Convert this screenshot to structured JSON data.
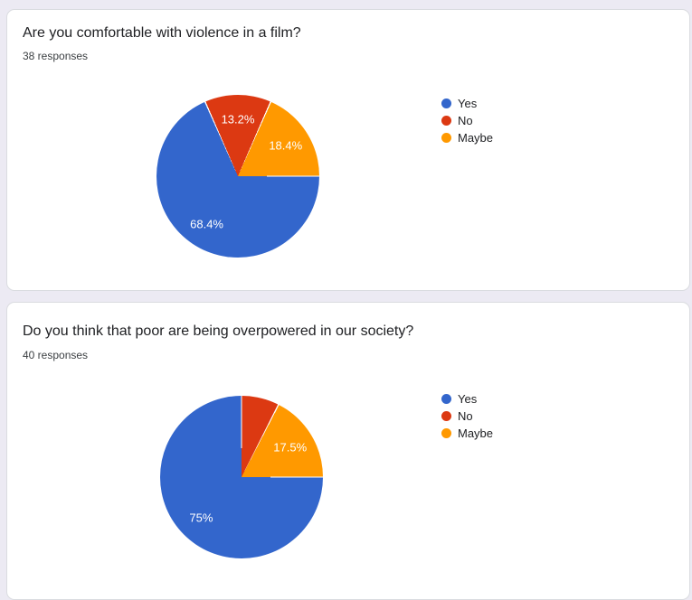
{
  "page": {
    "background_color": "#eceaf3",
    "card_background": "#ffffff",
    "card_border_color": "#dadce0"
  },
  "chart_data": [
    {
      "type": "pie",
      "title": "Are you comfortable with violence in a film?",
      "subtitle": "38 responses",
      "categories": [
        "Yes",
        "No",
        "Maybe"
      ],
      "values": [
        68.4,
        13.2,
        18.4
      ],
      "unit": "percent",
      "slice_labels": [
        "68.4%",
        "13.2%",
        "18.4%"
      ],
      "colors": [
        "#3366cc",
        "#dc3912",
        "#ff9900"
      ],
      "label_color": "#ffffff",
      "legend_position": "right",
      "start_angle": "3-oclock-clockwise",
      "separator_color": "#ffffff"
    },
    {
      "type": "pie",
      "title": "Do you think that poor are being overpowered in our society?",
      "subtitle": "40 responses",
      "categories": [
        "Yes",
        "No",
        "Maybe"
      ],
      "values": [
        75,
        7.5,
        17.5
      ],
      "unit": "percent",
      "slice_labels": [
        "75%",
        null,
        "17.5%"
      ],
      "colors": [
        "#3366cc",
        "#dc3912",
        "#ff9900"
      ],
      "label_color": "#ffffff",
      "legend_position": "right",
      "start_angle": "3-oclock-clockwise",
      "separator_color": "#ffffff"
    }
  ]
}
